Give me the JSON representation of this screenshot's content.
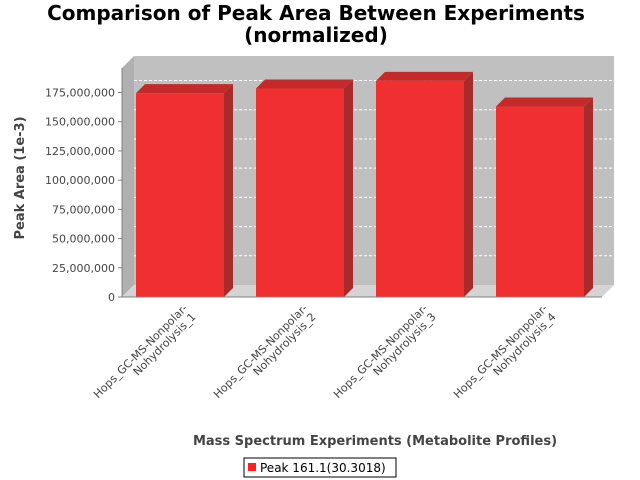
{
  "chart_data": {
    "type": "bar",
    "title": [
      "Comparison of Peak Area Between Experiments",
      "(normalized)"
    ],
    "xlabel": "Mass Spectrum Experiments (Metabolite Profiles)",
    "ylabel": "Peak Area (1e-3)",
    "categories": [
      [
        "Hops_GC-MS-Nonpolar-",
        "Nohydrolysis_1"
      ],
      [
        "Hops_GC-MS-Nonpolar-",
        "Nohydrolysis_2"
      ],
      [
        "Hops_GC-MS-Nonpolar-",
        "Nohydrolysis_3"
      ],
      [
        "Hops_GC-MS-Nonpolar-",
        "Nohydrolysis_4"
      ]
    ],
    "series": [
      {
        "name": "Peak 161.1(30.3018)",
        "values": [
          174500000,
          178500000,
          185000000,
          163000000
        ],
        "color": "#ff2020"
      }
    ],
    "yticks": [
      0,
      25000000,
      50000000,
      75000000,
      100000000,
      125000000,
      150000000,
      175000000
    ],
    "ylim": [
      0,
      196000000
    ],
    "grid": true,
    "legend": "bottom",
    "colors": {
      "plot_back": "#c0c0c0",
      "bar_front": "#f03030",
      "bar_top": "#c42a2a",
      "bar_side": "#a82a2a",
      "grid": "#ffffff"
    }
  }
}
